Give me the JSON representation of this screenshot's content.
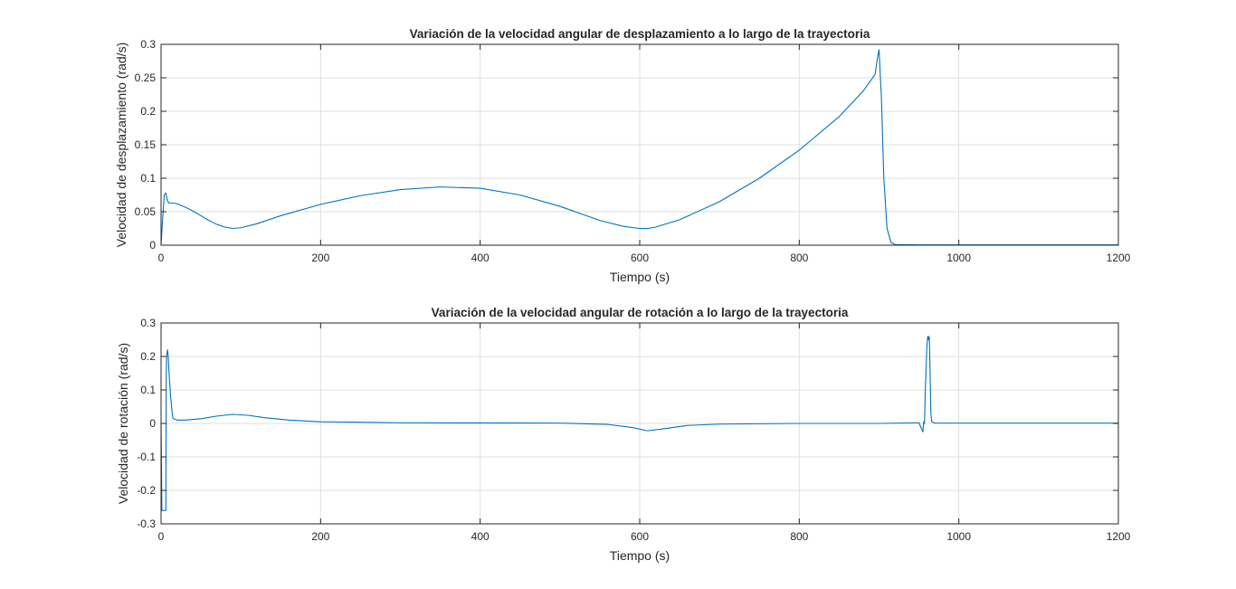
{
  "figure": {
    "colors": {
      "series": "#0072bd",
      "axis": "#262626",
      "grid": "#dfdfdf"
    }
  },
  "chart_data": [
    {
      "type": "line",
      "title": "Variación de la velocidad angular de desplazamiento a lo largo de la trayectoria",
      "xlabel": "Tiempo (s)",
      "ylabel": "Velocidad de desplazamiento (rad/s)",
      "xlim": [
        0,
        1200
      ],
      "ylim": [
        0,
        0.3
      ],
      "xticks": [
        0,
        200,
        400,
        600,
        800,
        1000,
        1200
      ],
      "xtick_labels": [
        "0",
        "200",
        "400",
        "600",
        "800",
        "1000",
        "1200"
      ],
      "yticks": [
        0,
        0.05,
        0.1,
        0.15,
        0.2,
        0.25,
        0.3
      ],
      "ytick_labels": [
        "0",
        "0.05",
        "0.1",
        "0.15",
        "0.2",
        "0.25",
        "0.3"
      ],
      "grid": true,
      "series": [
        {
          "x": [
            0,
            2,
            4,
            6,
            8,
            10,
            15,
            20,
            30,
            40,
            50,
            60,
            70,
            80,
            90,
            100,
            120,
            150,
            200,
            250,
            300,
            350,
            400,
            450,
            500,
            550,
            580,
            600,
            610,
            620,
            650,
            700,
            750,
            800,
            850,
            880,
            895,
            898,
            900,
            903,
            906,
            910,
            915,
            920,
            950,
            1000,
            1100,
            1200
          ],
          "y": [
            0,
            0.04,
            0.075,
            0.078,
            0.066,
            0.063,
            0.063,
            0.062,
            0.057,
            0.051,
            0.044,
            0.037,
            0.031,
            0.027,
            0.025,
            0.026,
            0.032,
            0.044,
            0.061,
            0.074,
            0.083,
            0.087,
            0.085,
            0.075,
            0.058,
            0.037,
            0.028,
            0.025,
            0.025,
            0.027,
            0.038,
            0.065,
            0.1,
            0.142,
            0.192,
            0.23,
            0.255,
            0.28,
            0.292,
            0.22,
            0.1,
            0.025,
            0.004,
            0.001,
            0.0005,
            0.0005,
            0.0005,
            0.0005
          ]
        }
      ]
    },
    {
      "type": "line",
      "title": "Variación de la velocidad angular de rotación a lo largo de la trayectoria",
      "xlabel": "Tiempo (s)",
      "ylabel": "Velocidad de rotación (rad/s)",
      "xlim": [
        0,
        1200
      ],
      "ylim": [
        -0.3,
        0.3
      ],
      "xticks": [
        0,
        200,
        400,
        600,
        800,
        1000,
        1200
      ],
      "xtick_labels": [
        "0",
        "200",
        "400",
        "600",
        "800",
        "1000",
        "1200"
      ],
      "yticks": [
        -0.3,
        -0.2,
        -0.1,
        0,
        0.1,
        0.2,
        0.3
      ],
      "ytick_labels": [
        "-0.3",
        "-0.2",
        "-0.1",
        "0",
        "0.1",
        "0.2",
        "0.3"
      ],
      "grid": true,
      "series": [
        {
          "x": [
            0,
            0.5,
            1,
            5,
            6,
            6.5,
            7,
            8,
            9,
            10,
            12,
            14,
            15,
            20,
            30,
            50,
            70,
            90,
            110,
            130,
            160,
            200,
            300,
            400,
            500,
            560,
            590,
            610,
            630,
            660,
            700,
            800,
            900,
            950,
            955,
            956,
            957,
            958,
            960,
            961,
            962,
            963,
            964,
            965,
            966,
            970,
            1000,
            1100,
            1200
          ],
          "y": [
            0,
            -0.1,
            -0.26,
            -0.26,
            -0.26,
            0.15,
            0.2,
            0.22,
            0.2,
            0.15,
            0.08,
            0.03,
            0.015,
            0.01,
            0.01,
            0.014,
            0.022,
            0.027,
            0.024,
            0.017,
            0.01,
            0.005,
            0.002,
            0.0015,
            0.001,
            -0.003,
            -0.012,
            -0.022,
            -0.016,
            -0.006,
            -0.002,
            0,
            0,
            0.002,
            -0.025,
            0.005,
            0,
            0.1,
            0.23,
            0.26,
            0.25,
            0.26,
            0.15,
            0.03,
            0.005,
            0.001,
            0.001,
            0.001,
            0.001
          ]
        }
      ]
    }
  ]
}
